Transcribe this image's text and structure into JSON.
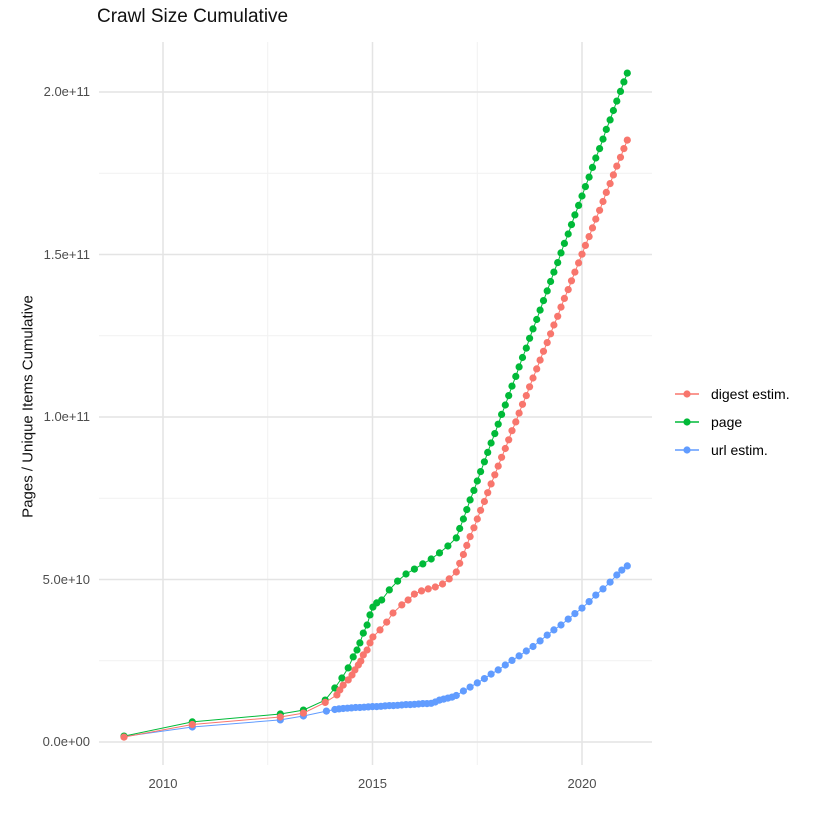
{
  "title": "Crawl Size Cumulative",
  "axes": {
    "y_label": "Pages / Unique Items Cumulative",
    "y_ticks": [
      {
        "label": "0.0e+00",
        "value": 0
      },
      {
        "label": "5.0e+10",
        "value": 50
      },
      {
        "label": "1.0e+11",
        "value": 100
      },
      {
        "label": "1.5e+11",
        "value": 150
      },
      {
        "label": "2.0e+11",
        "value": 200
      }
    ],
    "x_ticks": [
      {
        "label": "2010",
        "year": 2010
      },
      {
        "label": "2015",
        "year": 2015
      },
      {
        "label": "2020",
        "year": 2020
      }
    ],
    "y_minor_values": [
      25,
      75,
      125,
      175
    ],
    "x_minor_years": [
      2012.5,
      2017.5
    ]
  },
  "legend": {
    "items": [
      {
        "label": "digest estim.",
        "color": "#F8766D"
      },
      {
        "label": "page",
        "color": "#00BA38"
      },
      {
        "label": "url estim.",
        "color": "#619CFF"
      }
    ]
  },
  "chart_data": {
    "type": "line",
    "title": "Crawl Size Cumulative",
    "xlabel": "",
    "ylabel": "Pages / Unique Items Cumulative",
    "value_unit": "items, stored as billions (1e9)",
    "xlim": [
      2008.5,
      2021.7
    ],
    "ylim_e9": [
      -10,
      215
    ],
    "grid": true,
    "legend_position": "right",
    "marker": "point",
    "series": [
      {
        "name": "url estim.",
        "color": "#619CFF",
        "points": [
          [
            2009.07,
            1.7
          ],
          [
            2010.7,
            4.6
          ],
          [
            2012.8,
            6.8
          ],
          [
            2013.35,
            8.0
          ],
          [
            2013.9,
            9.5
          ],
          [
            2014.1,
            10.0
          ],
          [
            2014.2,
            10.2
          ],
          [
            2014.3,
            10.3
          ],
          [
            2014.4,
            10.4
          ],
          [
            2014.5,
            10.5
          ],
          [
            2014.6,
            10.6
          ],
          [
            2014.7,
            10.6
          ],
          [
            2014.8,
            10.7
          ],
          [
            2014.9,
            10.8
          ],
          [
            2015.0,
            10.9
          ],
          [
            2015.1,
            10.9
          ],
          [
            2015.2,
            11.0
          ],
          [
            2015.3,
            11.1
          ],
          [
            2015.4,
            11.2
          ],
          [
            2015.5,
            11.2
          ],
          [
            2015.6,
            11.3
          ],
          [
            2015.7,
            11.4
          ],
          [
            2015.8,
            11.5
          ],
          [
            2015.9,
            11.5
          ],
          [
            2016.0,
            11.6
          ],
          [
            2016.1,
            11.7
          ],
          [
            2016.2,
            11.8
          ],
          [
            2016.3,
            11.8
          ],
          [
            2016.4,
            11.9
          ],
          [
            2016.5,
            12.3
          ],
          [
            2016.6,
            12.9
          ],
          [
            2016.7,
            13.2
          ],
          [
            2016.8,
            13.5
          ],
          [
            2016.9,
            13.8
          ],
          [
            2017.0,
            14.3
          ],
          [
            2017.17,
            15.7
          ],
          [
            2017.33,
            16.9
          ],
          [
            2017.5,
            18.2
          ],
          [
            2017.67,
            19.5
          ],
          [
            2017.83,
            20.9
          ],
          [
            2018.0,
            22.2
          ],
          [
            2018.17,
            23.7
          ],
          [
            2018.33,
            25.1
          ],
          [
            2018.5,
            26.5
          ],
          [
            2018.67,
            28.0
          ],
          [
            2018.83,
            29.4
          ],
          [
            2019.0,
            31.1
          ],
          [
            2019.17,
            32.9
          ],
          [
            2019.33,
            34.5
          ],
          [
            2019.5,
            36.0
          ],
          [
            2019.67,
            37.8
          ],
          [
            2019.83,
            39.5
          ],
          [
            2020.0,
            41.2
          ],
          [
            2020.17,
            43.2
          ],
          [
            2020.33,
            45.2
          ],
          [
            2020.5,
            47.1
          ],
          [
            2020.67,
            49.2
          ],
          [
            2020.83,
            51.4
          ],
          [
            2020.95,
            52.9
          ],
          [
            2021.08,
            54.2
          ]
        ]
      },
      {
        "name": "page",
        "color": "#00BA38",
        "points": [
          [
            2009.07,
            1.8
          ],
          [
            2010.7,
            6.2
          ],
          [
            2012.8,
            8.6
          ],
          [
            2013.35,
            9.8
          ],
          [
            2013.87,
            12.9
          ],
          [
            2014.1,
            16.6
          ],
          [
            2014.27,
            19.7
          ],
          [
            2014.42,
            22.8
          ],
          [
            2014.54,
            26.2
          ],
          [
            2014.63,
            28.3
          ],
          [
            2014.7,
            30.5
          ],
          [
            2014.78,
            33.5
          ],
          [
            2014.87,
            36.0
          ],
          [
            2014.94,
            39.1
          ],
          [
            2015.01,
            41.5
          ],
          [
            2015.1,
            42.8
          ],
          [
            2015.22,
            43.7
          ],
          [
            2015.4,
            46.8
          ],
          [
            2015.6,
            49.5
          ],
          [
            2015.8,
            51.7
          ],
          [
            2016.0,
            53.2
          ],
          [
            2016.2,
            54.8
          ],
          [
            2016.4,
            56.3
          ],
          [
            2016.6,
            58.2
          ],
          [
            2016.8,
            60.3
          ],
          [
            2017.0,
            62.8
          ],
          [
            2017.08,
            65.7
          ],
          [
            2017.17,
            68.6
          ],
          [
            2017.25,
            71.5
          ],
          [
            2017.33,
            74.5
          ],
          [
            2017.42,
            77.4
          ],
          [
            2017.5,
            80.3
          ],
          [
            2017.58,
            83.2
          ],
          [
            2017.67,
            86.2
          ],
          [
            2017.75,
            89.1
          ],
          [
            2017.83,
            92.0
          ],
          [
            2017.92,
            94.9
          ],
          [
            2018.0,
            97.8
          ],
          [
            2018.08,
            100.8
          ],
          [
            2018.17,
            103.7
          ],
          [
            2018.25,
            106.6
          ],
          [
            2018.33,
            109.5
          ],
          [
            2018.42,
            112.5
          ],
          [
            2018.5,
            115.4
          ],
          [
            2018.58,
            118.3
          ],
          [
            2018.67,
            121.2
          ],
          [
            2018.75,
            124.2
          ],
          [
            2018.83,
            127.1
          ],
          [
            2018.92,
            130.0
          ],
          [
            2019.0,
            132.9
          ],
          [
            2019.08,
            135.8
          ],
          [
            2019.17,
            138.8
          ],
          [
            2019.25,
            141.7
          ],
          [
            2019.33,
            144.6
          ],
          [
            2019.42,
            147.5
          ],
          [
            2019.5,
            150.5
          ],
          [
            2019.58,
            153.4
          ],
          [
            2019.67,
            156.3
          ],
          [
            2019.75,
            159.2
          ],
          [
            2019.83,
            162.2
          ],
          [
            2019.92,
            165.1
          ],
          [
            2020.0,
            168.0
          ],
          [
            2020.08,
            170.9
          ],
          [
            2020.17,
            173.8
          ],
          [
            2020.25,
            176.8
          ],
          [
            2020.33,
            179.7
          ],
          [
            2020.42,
            182.6
          ],
          [
            2020.5,
            185.5
          ],
          [
            2020.58,
            188.5
          ],
          [
            2020.67,
            191.4
          ],
          [
            2020.75,
            194.3
          ],
          [
            2020.83,
            197.2
          ],
          [
            2020.92,
            200.2
          ],
          [
            2021.0,
            203.1
          ],
          [
            2021.08,
            205.8
          ]
        ]
      },
      {
        "name": "digest estim.",
        "color": "#F8766D",
        "points": [
          [
            2009.07,
            1.5
          ],
          [
            2010.7,
            5.4
          ],
          [
            2012.8,
            7.7
          ],
          [
            2013.35,
            8.9
          ],
          [
            2013.87,
            12.2
          ],
          [
            2014.15,
            14.5
          ],
          [
            2014.22,
            16.0
          ],
          [
            2014.3,
            17.5
          ],
          [
            2014.42,
            19.1
          ],
          [
            2014.51,
            20.6
          ],
          [
            2014.58,
            22.2
          ],
          [
            2014.66,
            23.7
          ],
          [
            2014.72,
            24.9
          ],
          [
            2014.78,
            26.8
          ],
          [
            2014.87,
            28.3
          ],
          [
            2014.94,
            30.5
          ],
          [
            2015.01,
            32.3
          ],
          [
            2015.18,
            34.5
          ],
          [
            2015.34,
            36.9
          ],
          [
            2015.49,
            39.7
          ],
          [
            2015.7,
            42.2
          ],
          [
            2015.85,
            43.7
          ],
          [
            2016.0,
            45.5
          ],
          [
            2016.17,
            46.5
          ],
          [
            2016.33,
            47.1
          ],
          [
            2016.5,
            47.7
          ],
          [
            2016.67,
            48.6
          ],
          [
            2016.83,
            50.2
          ],
          [
            2017.0,
            52.3
          ],
          [
            2017.08,
            55.0
          ],
          [
            2017.17,
            57.7
          ],
          [
            2017.25,
            60.5
          ],
          [
            2017.33,
            63.2
          ],
          [
            2017.42,
            65.9
          ],
          [
            2017.5,
            68.6
          ],
          [
            2017.58,
            71.3
          ],
          [
            2017.67,
            74.0
          ],
          [
            2017.75,
            76.7
          ],
          [
            2017.83,
            79.4
          ],
          [
            2017.92,
            82.2
          ],
          [
            2018.0,
            84.9
          ],
          [
            2018.08,
            87.6
          ],
          [
            2018.17,
            90.3
          ],
          [
            2018.25,
            93.0
          ],
          [
            2018.33,
            95.8
          ],
          [
            2018.42,
            98.5
          ],
          [
            2018.5,
            101.2
          ],
          [
            2018.58,
            103.9
          ],
          [
            2018.67,
            106.6
          ],
          [
            2018.75,
            109.3
          ],
          [
            2018.83,
            112.0
          ],
          [
            2018.92,
            114.8
          ],
          [
            2019.0,
            117.5
          ],
          [
            2019.08,
            120.2
          ],
          [
            2019.17,
            122.9
          ],
          [
            2019.25,
            125.6
          ],
          [
            2019.33,
            128.3
          ],
          [
            2019.42,
            131.0
          ],
          [
            2019.5,
            133.8
          ],
          [
            2019.58,
            136.5
          ],
          [
            2019.67,
            139.2
          ],
          [
            2019.75,
            141.9
          ],
          [
            2019.83,
            144.6
          ],
          [
            2019.92,
            147.4
          ],
          [
            2020.0,
            150.1
          ],
          [
            2020.08,
            152.8
          ],
          [
            2020.17,
            155.5
          ],
          [
            2020.25,
            158.2
          ],
          [
            2020.33,
            160.9
          ],
          [
            2020.42,
            163.6
          ],
          [
            2020.5,
            166.3
          ],
          [
            2020.58,
            169.1
          ],
          [
            2020.67,
            171.8
          ],
          [
            2020.75,
            174.5
          ],
          [
            2020.83,
            177.2
          ],
          [
            2020.92,
            179.9
          ],
          [
            2021.0,
            182.6
          ],
          [
            2021.08,
            185.2
          ]
        ]
      }
    ]
  }
}
